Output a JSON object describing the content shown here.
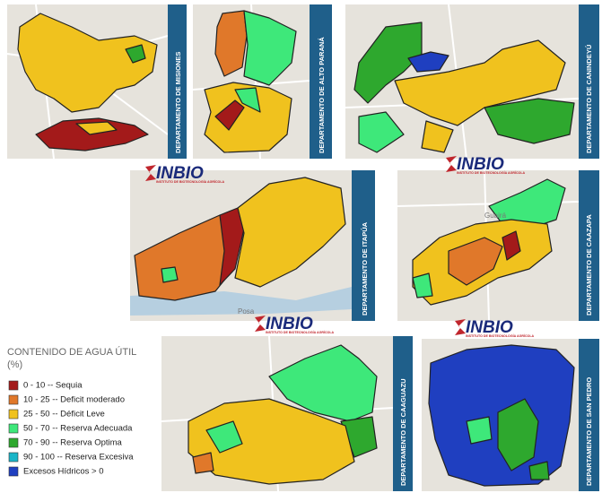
{
  "panels": [
    {
      "label": "DEPARTAMENTO DE MISIONES"
    },
    {
      "label": "DEPARTAMENTO DE ALTO PARANÁ"
    },
    {
      "label": "DEPARTAMENTO DE CANINDEYÚ"
    },
    {
      "label": "DEPARTAMENTO DE ITAPÚA",
      "place": "Posa"
    },
    {
      "label": "DEPARTAMENTO DE CAAZAPA",
      "place": "Guairá"
    },
    {
      "label": "DEPARTAMENTO DE CAAGUAZU"
    },
    {
      "label": "DEPARTAMENTO DE SAN PEDRO"
    }
  ],
  "logo": {
    "name": "INBIO",
    "subtitle": "INSTITUTO DE BIOTECNOLOGÍA AGRÍCOLA"
  },
  "legend": {
    "title": "CONTENIDO DE AGUA ÚTIL",
    "unit": "(%)",
    "items": [
      {
        "label": "0 - 10 --  Sequia",
        "color": "#a31a1a"
      },
      {
        "label": "10 - 25 -- Deficit moderado",
        "color": "#e0782a"
      },
      {
        "label": "25 - 50 -- Déficit Leve",
        "color": "#f0c21e"
      },
      {
        "label": "50 - 70 -- Reserva Adecuada",
        "color": "#3ee87a"
      },
      {
        "label": "70 - 90 -- Reserva Optima",
        "color": "#2ea82e"
      },
      {
        "label": "90 - 100 -- Reserva Excesiva",
        "color": "#1ab5c8"
      },
      {
        "label": "Excesos Hídricos  > 0",
        "color": "#1f3fc0"
      }
    ]
  }
}
